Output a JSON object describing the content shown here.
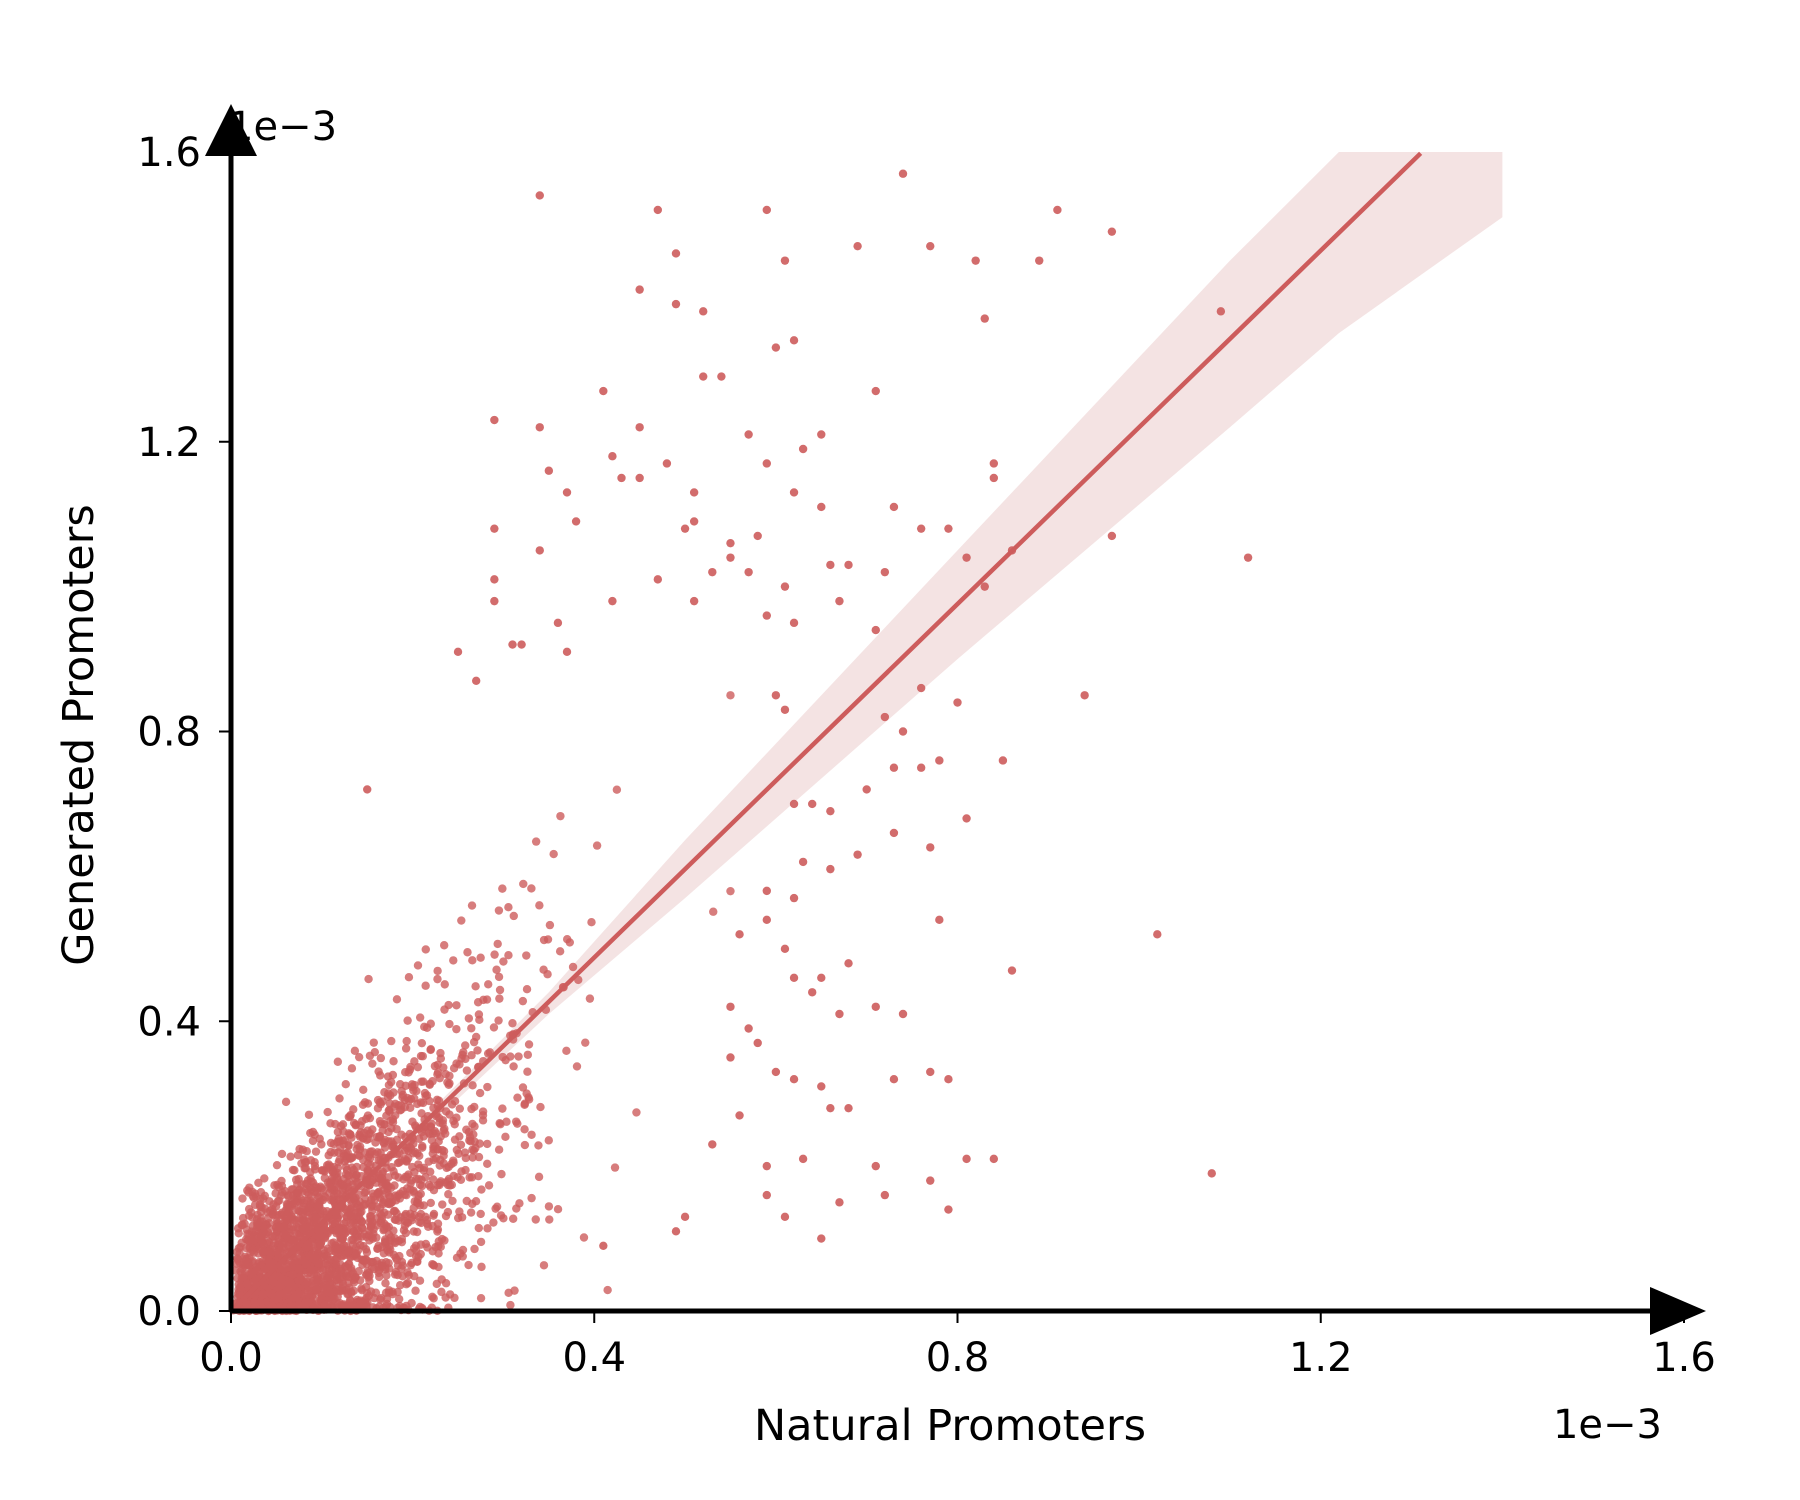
{
  "chart_data": {
    "type": "scatter",
    "title": "",
    "xlabel": "Natural Promoters",
    "ylabel": "Generated Promoters",
    "x_multiplier": "1e−3",
    "y_multiplier": "1e−3",
    "xlim": [
      0.0,
      1.6
    ],
    "ylim": [
      0.0,
      1.6
    ],
    "xticks": [
      0.0,
      0.4,
      0.8,
      1.2,
      1.6
    ],
    "yticks": [
      0.0,
      0.4,
      0.8,
      1.2,
      1.6
    ],
    "xtick_labels": [
      "0.0",
      "0.4",
      "0.8",
      "1.2",
      "1.6"
    ],
    "ytick_labels": [
      "0.0",
      "0.4",
      "0.8",
      "1.2",
      "1.6"
    ],
    "grid": false,
    "legend": "none",
    "point_color": "#cd5c5c",
    "band_color": "#f2dede",
    "regression": {
      "slope": 1.22,
      "intercept": 0.0,
      "x_range": [
        0.0,
        1.31
      ]
    },
    "ci_band": [
      {
        "x": 0.0,
        "lower": 0.0,
        "upper": 0.0
      },
      {
        "x": 0.35,
        "lower": 0.41,
        "upper": 0.44
      },
      {
        "x": 0.5,
        "lower": 0.57,
        "upper": 0.65
      },
      {
        "x": 0.8,
        "lower": 0.9,
        "upper": 1.05
      },
      {
        "x": 1.1,
        "lower": 1.22,
        "upper": 1.45
      },
      {
        "x": 1.4,
        "lower": 1.51,
        "upper": 1.6
      },
      {
        "x": 1.22,
        "lower": 1.35,
        "upper": 1.6
      }
    ],
    "highlight_points": [
      [
        0.34,
        1.54
      ],
      [
        0.47,
        1.52
      ],
      [
        0.59,
        1.52
      ],
      [
        0.74,
        1.57
      ],
      [
        0.91,
        1.52
      ],
      [
        0.97,
        1.49
      ],
      [
        0.69,
        1.47
      ],
      [
        0.77,
        1.47
      ],
      [
        0.82,
        1.45
      ],
      [
        0.89,
        1.45
      ],
      [
        0.49,
        1.46
      ],
      [
        0.61,
        1.45
      ],
      [
        0.45,
        1.41
      ],
      [
        0.49,
        1.39
      ],
      [
        0.52,
        1.38
      ],
      [
        0.6,
        1.33
      ],
      [
        0.62,
        1.34
      ],
      [
        0.83,
        1.37
      ],
      [
        1.09,
        1.38
      ],
      [
        0.52,
        1.29
      ],
      [
        0.54,
        1.29
      ],
      [
        0.41,
        1.27
      ],
      [
        0.71,
        1.27
      ],
      [
        0.29,
        1.23
      ],
      [
        0.34,
        1.22
      ],
      [
        0.45,
        1.22
      ],
      [
        0.57,
        1.21
      ],
      [
        0.65,
        1.21
      ],
      [
        0.63,
        1.19
      ],
      [
        0.42,
        1.18
      ],
      [
        0.48,
        1.17
      ],
      [
        0.35,
        1.16
      ],
      [
        0.59,
        1.17
      ],
      [
        0.84,
        1.17
      ],
      [
        0.43,
        1.15
      ],
      [
        0.45,
        1.15
      ],
      [
        0.84,
        1.15
      ],
      [
        0.37,
        1.13
      ],
      [
        0.51,
        1.13
      ],
      [
        0.62,
        1.13
      ],
      [
        0.65,
        1.11
      ],
      [
        0.73,
        1.11
      ],
      [
        0.51,
        1.09
      ],
      [
        0.38,
        1.09
      ],
      [
        0.29,
        1.08
      ],
      [
        0.5,
        1.08
      ],
      [
        0.76,
        1.08
      ],
      [
        0.79,
        1.08
      ],
      [
        0.55,
        1.06
      ],
      [
        0.58,
        1.07
      ],
      [
        0.97,
        1.07
      ],
      [
        0.34,
        1.05
      ],
      [
        0.55,
        1.04
      ],
      [
        0.86,
        1.05
      ],
      [
        1.12,
        1.04
      ],
      [
        0.81,
        1.04
      ],
      [
        0.66,
        1.03
      ],
      [
        0.68,
        1.03
      ],
      [
        0.72,
        1.02
      ],
      [
        0.57,
        1.02
      ],
      [
        0.53,
        1.02
      ],
      [
        0.29,
        1.01
      ],
      [
        0.47,
        1.01
      ],
      [
        0.83,
        1.0
      ],
      [
        0.61,
        1.0
      ],
      [
        0.29,
        0.98
      ],
      [
        0.51,
        0.98
      ],
      [
        0.67,
        0.98
      ],
      [
        0.42,
        0.98
      ],
      [
        0.59,
        0.96
      ],
      [
        0.36,
        0.95
      ],
      [
        0.62,
        0.95
      ],
      [
        0.71,
        0.94
      ],
      [
        0.31,
        0.92
      ],
      [
        0.32,
        0.92
      ],
      [
        0.25,
        0.91
      ],
      [
        0.37,
        0.91
      ],
      [
        0.27,
        0.87
      ],
      [
        0.76,
        0.86
      ],
      [
        0.94,
        0.85
      ],
      [
        0.6,
        0.85
      ],
      [
        0.61,
        0.83
      ],
      [
        0.8,
        0.84
      ],
      [
        0.72,
        0.82
      ],
      [
        0.74,
        0.8
      ],
      [
        0.15,
        0.72
      ],
      [
        0.85,
        0.76
      ],
      [
        0.73,
        0.75
      ],
      [
        0.76,
        0.75
      ],
      [
        0.78,
        0.76
      ],
      [
        0.62,
        0.7
      ],
      [
        0.64,
        0.7
      ],
      [
        0.66,
        0.69
      ],
      [
        0.7,
        0.72
      ],
      [
        0.73,
        0.66
      ],
      [
        0.77,
        0.64
      ],
      [
        0.81,
        0.68
      ],
      [
        0.63,
        0.62
      ],
      [
        0.66,
        0.61
      ],
      [
        0.69,
        0.63
      ],
      [
        0.59,
        0.58
      ],
      [
        0.62,
        0.57
      ],
      [
        0.78,
        0.54
      ],
      [
        0.59,
        0.54
      ],
      [
        1.02,
        0.52
      ],
      [
        0.56,
        0.52
      ],
      [
        0.61,
        0.5
      ],
      [
        0.65,
        0.46
      ],
      [
        0.68,
        0.48
      ],
      [
        0.86,
        0.47
      ],
      [
        0.62,
        0.46
      ],
      [
        0.64,
        0.44
      ],
      [
        0.67,
        0.41
      ],
      [
        0.71,
        0.42
      ],
      [
        0.74,
        0.41
      ],
      [
        0.55,
        0.42
      ],
      [
        0.57,
        0.39
      ],
      [
        0.58,
        0.37
      ],
      [
        0.55,
        0.35
      ],
      [
        0.6,
        0.33
      ],
      [
        0.62,
        0.32
      ],
      [
        0.65,
        0.31
      ],
      [
        0.73,
        0.32
      ],
      [
        0.77,
        0.33
      ],
      [
        0.79,
        0.32
      ],
      [
        0.66,
        0.28
      ],
      [
        0.68,
        0.28
      ],
      [
        0.56,
        0.27
      ],
      [
        0.53,
        0.23
      ],
      [
        0.59,
        0.2
      ],
      [
        0.63,
        0.21
      ],
      [
        0.71,
        0.2
      ],
      [
        0.81,
        0.21
      ],
      [
        0.84,
        0.21
      ],
      [
        0.77,
        0.18
      ],
      [
        0.59,
        0.16
      ],
      [
        0.67,
        0.15
      ],
      [
        0.72,
        0.16
      ],
      [
        0.79,
        0.14
      ],
      [
        0.65,
        0.1
      ],
      [
        0.61,
        0.13
      ],
      [
        0.5,
        0.13
      ],
      [
        1.08,
        0.19
      ],
      [
        0.49,
        0.11
      ],
      [
        0.41,
        0.09
      ]
    ],
    "dense_cloud": {
      "center": [
        0.18,
        0.18
      ],
      "count": 2600,
      "x_range": [
        0.0,
        0.55
      ],
      "y_range": [
        0.0,
        0.85
      ]
    }
  }
}
